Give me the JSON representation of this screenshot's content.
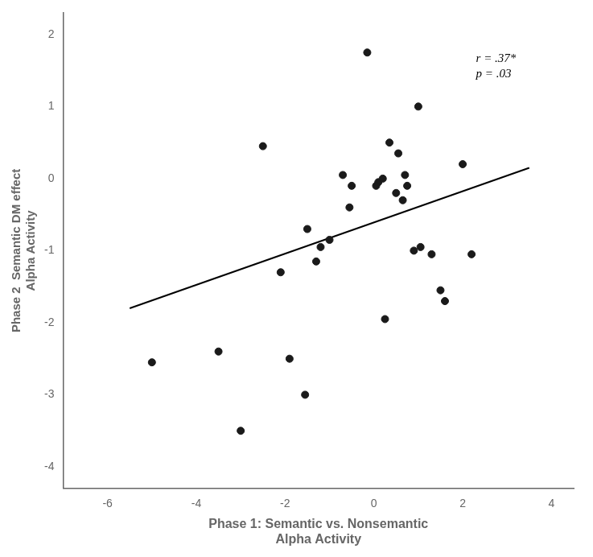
{
  "chart_data": {
    "type": "scatter",
    "xlabel": [
      "Phase 1: Semantic vs. Nonsemantic",
      "Alpha Activity"
    ],
    "ylabel": [
      "Phase 2  Semantic DM effect",
      "Alpha Activity"
    ],
    "series": [
      {
        "type": "scatter",
        "color": "#1a1a1a",
        "x": [
          -0.15,
          0.1,
          0.2,
          0.35,
          0.5,
          0.55,
          0.65,
          0.7,
          0.75,
          0.9,
          1.0,
          1.05,
          1.3,
          1.5,
          1.6,
          2.0,
          2.2,
          -0.5,
          -0.55,
          -0.7,
          -1.0,
          -1.2,
          -1.3,
          -1.5,
          -1.55,
          -1.9,
          -2.1,
          -2.5,
          -3.0,
          -3.5,
          -5.0,
          0.05,
          0.25
        ],
        "values": [
          1.75,
          -0.05,
          0.0,
          0.5,
          -0.2,
          0.35,
          -0.3,
          0.05,
          -0.1,
          -1.0,
          1.0,
          -0.95,
          -1.05,
          -1.55,
          -1.7,
          0.2,
          -1.05,
          -0.1,
          -0.4,
          0.05,
          -0.85,
          -0.95,
          -1.15,
          -0.7,
          -3.0,
          -2.5,
          -1.3,
          0.45,
          -3.5,
          -2.4,
          -2.55,
          -0.1,
          -1.95
        ]
      },
      {
        "type": "line",
        "color": "#000000",
        "x": [
          -5.5,
          3.5
        ],
        "values": [
          -1.8,
          0.15
        ]
      }
    ],
    "annotations": [
      {
        "text": [
          "r = .37*",
          "p = .03"
        ],
        "x": 2.3,
        "y": 1.75
      }
    ],
    "xlim": [
      -7,
      4.5
    ],
    "ylim": [
      -4.3,
      2.3
    ],
    "xticks": [
      -6,
      -4,
      -2,
      0,
      2,
      4
    ],
    "yticks": [
      -4,
      -3,
      -2,
      -1,
      0,
      1,
      2
    ],
    "grid": false
  }
}
